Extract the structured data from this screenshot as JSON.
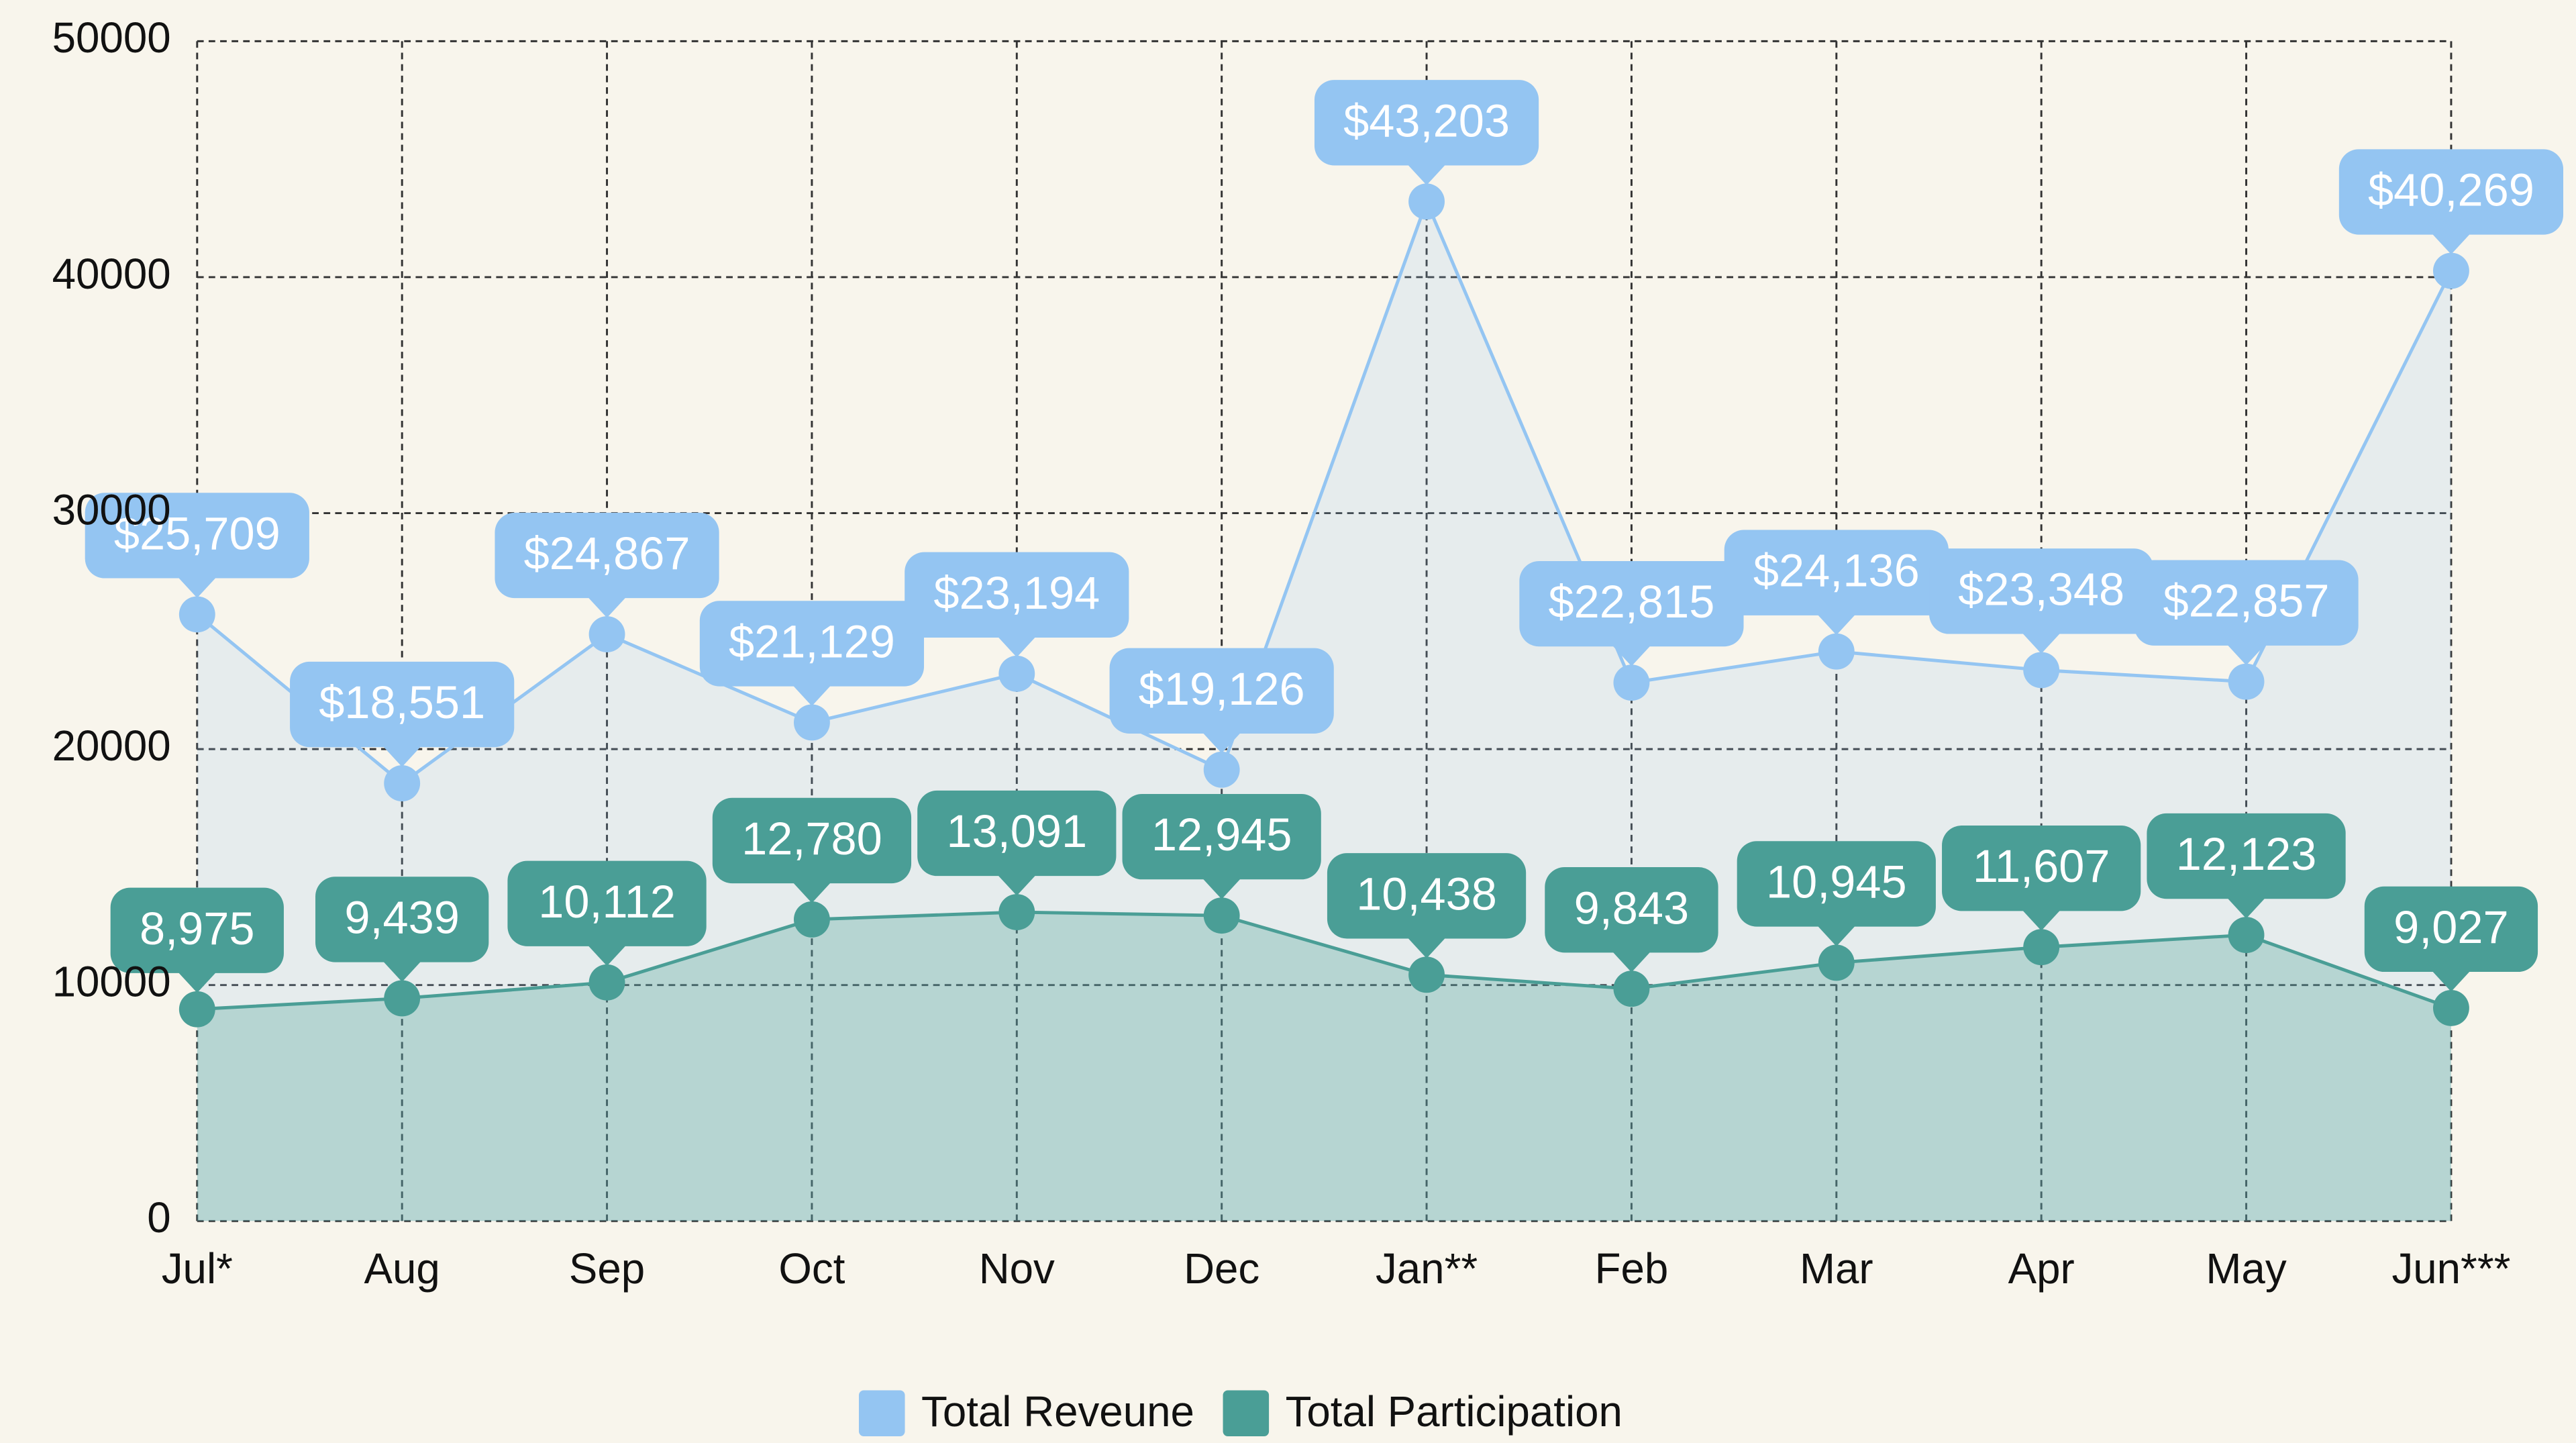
{
  "chart_data": {
    "type": "area",
    "categories": [
      "Jul*",
      "Aug",
      "Sep",
      "Oct",
      "Nov",
      "Dec",
      "Jan**",
      "Feb",
      "Mar",
      "Apr",
      "May",
      "Jun***"
    ],
    "series": [
      {
        "name": "Total Reveune",
        "color": "#94c5f2",
        "values": [
          25709,
          18551,
          24867,
          21129,
          23194,
          19126,
          43203,
          22815,
          24136,
          23348,
          22857,
          40269
        ],
        "value_labels": [
          "$25,709",
          "$18,551",
          "$24,867",
          "$21,129",
          "$23,194",
          "$19,126",
          "$43,203",
          "$22,815",
          "$24,136",
          "$23,348",
          "$22,857",
          "$40,269"
        ]
      },
      {
        "name": "Total Participation",
        "color": "#4a9e96",
        "values": [
          8975,
          9439,
          10112,
          12780,
          13091,
          12945,
          10438,
          9843,
          10945,
          11607,
          12123,
          9027
        ],
        "value_labels": [
          "8,975",
          "9,439",
          "10,112",
          "12,780",
          "13,091",
          "12,945",
          "10,438",
          "9,843",
          "10,945",
          "11,607",
          "12,123",
          "9,027"
        ]
      }
    ],
    "ylim": [
      0,
      50000
    ],
    "yticks": [
      0,
      10000,
      20000,
      30000,
      40000,
      50000
    ],
    "grid": true,
    "legend": "bottom"
  }
}
